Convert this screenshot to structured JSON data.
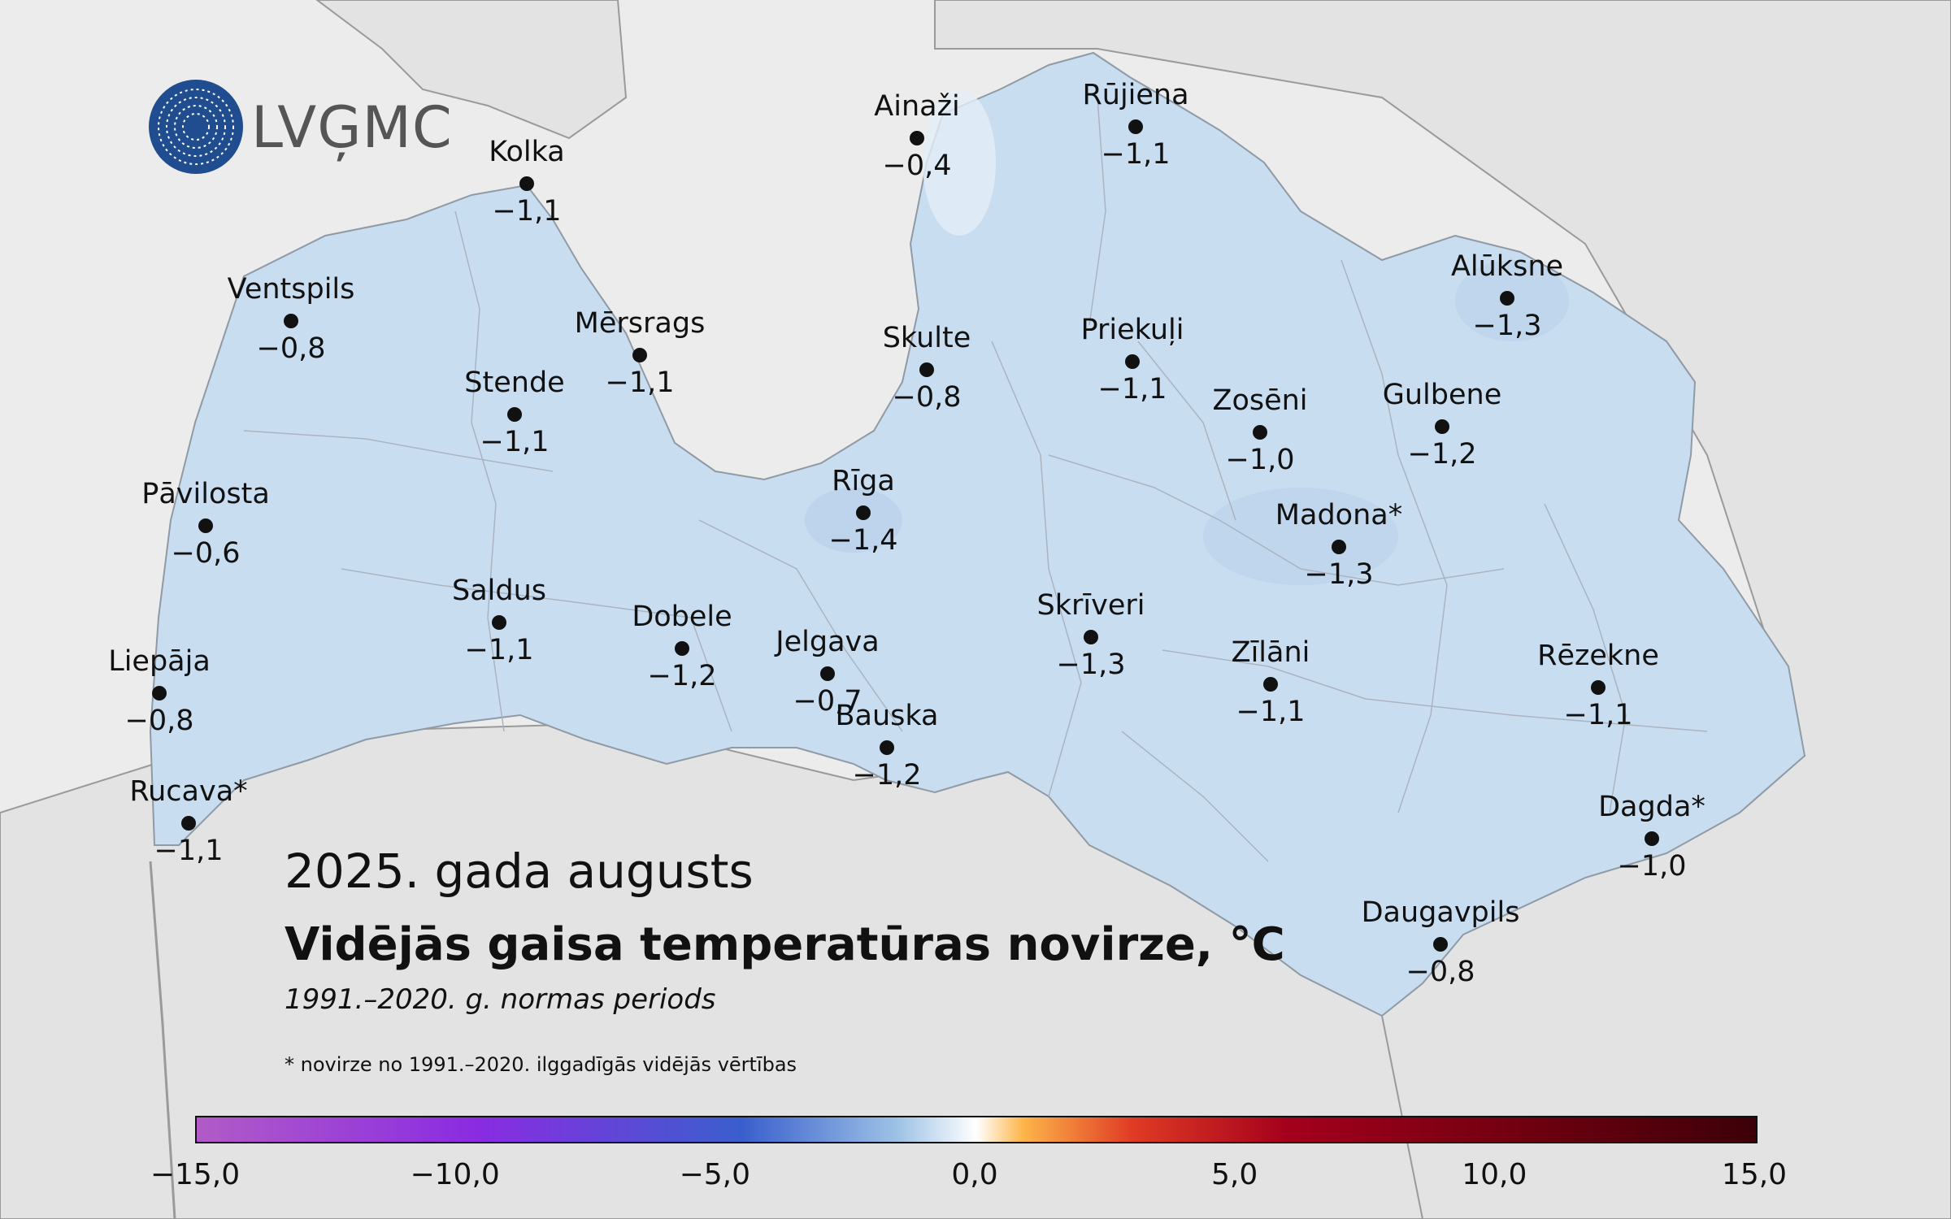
{
  "logo": {
    "text": "LVĢMC"
  },
  "title": {
    "date": "2025. gada augusts",
    "main": "Vidējās gaisa temperatūras novirze, °C",
    "sub": "1991.–2020. g. normas periods"
  },
  "footnote": "* novirze no 1991.–2020. ilggadīgās vidējās vērtības",
  "colors": {
    "sea": "#ececec",
    "land_foreign": "#e3e3e3",
    "latvia_fill": "#c9ddf1",
    "border": "#9a9a9a",
    "dot": "#111111"
  },
  "colorbar": {
    "ticks": [
      "−15,0",
      "−10,0",
      "−5,0",
      "0,0",
      "5,0",
      "10,0",
      "15,0"
    ],
    "min": -15,
    "max": 15,
    "colors": [
      "#b15bc7",
      "#8a2be2",
      "#3a5fcd",
      "#9ec3e6",
      "#ffffff",
      "#fdb54a",
      "#e03b24",
      "#a4001c",
      "#3d0008"
    ]
  },
  "stations": [
    {
      "name": "Ainaži",
      "value": "−0,4"
    },
    {
      "name": "Rūjiena",
      "value": "−1,1"
    },
    {
      "name": "Kolka",
      "value": "−1,1"
    },
    {
      "name": "Ventspils",
      "value": "−0,8"
    },
    {
      "name": "Mērsrags",
      "value": "−1,1"
    },
    {
      "name": "Skulte",
      "value": "−0,8"
    },
    {
      "name": "Priekuļi",
      "value": "−1,1"
    },
    {
      "name": "Alūksne",
      "value": "−1,3"
    },
    {
      "name": "Stende",
      "value": "−1,1"
    },
    {
      "name": "Zosēni",
      "value": "−1,0"
    },
    {
      "name": "Gulbene",
      "value": "−1,2"
    },
    {
      "name": "Pāvilosta",
      "value": "−0,6"
    },
    {
      "name": "Rīga",
      "value": "−1,4"
    },
    {
      "name": "Madona*",
      "value": "−1,3"
    },
    {
      "name": "Saldus",
      "value": "−1,1"
    },
    {
      "name": "Dobele",
      "value": "−1,2"
    },
    {
      "name": "Skrīveri",
      "value": "−1,3"
    },
    {
      "name": "Jelgava",
      "value": "−0,7"
    },
    {
      "name": "Zīlāni",
      "value": "−1,1"
    },
    {
      "name": "Rēzekne",
      "value": "−1,1"
    },
    {
      "name": "Liepāja",
      "value": "−0,8"
    },
    {
      "name": "Bauska",
      "value": "−1,2"
    },
    {
      "name": "Rucava*",
      "value": "−1,1"
    },
    {
      "name": "Dagda*",
      "value": "−1,0"
    },
    {
      "name": "Daugavpils",
      "value": "−0,8"
    }
  ]
}
